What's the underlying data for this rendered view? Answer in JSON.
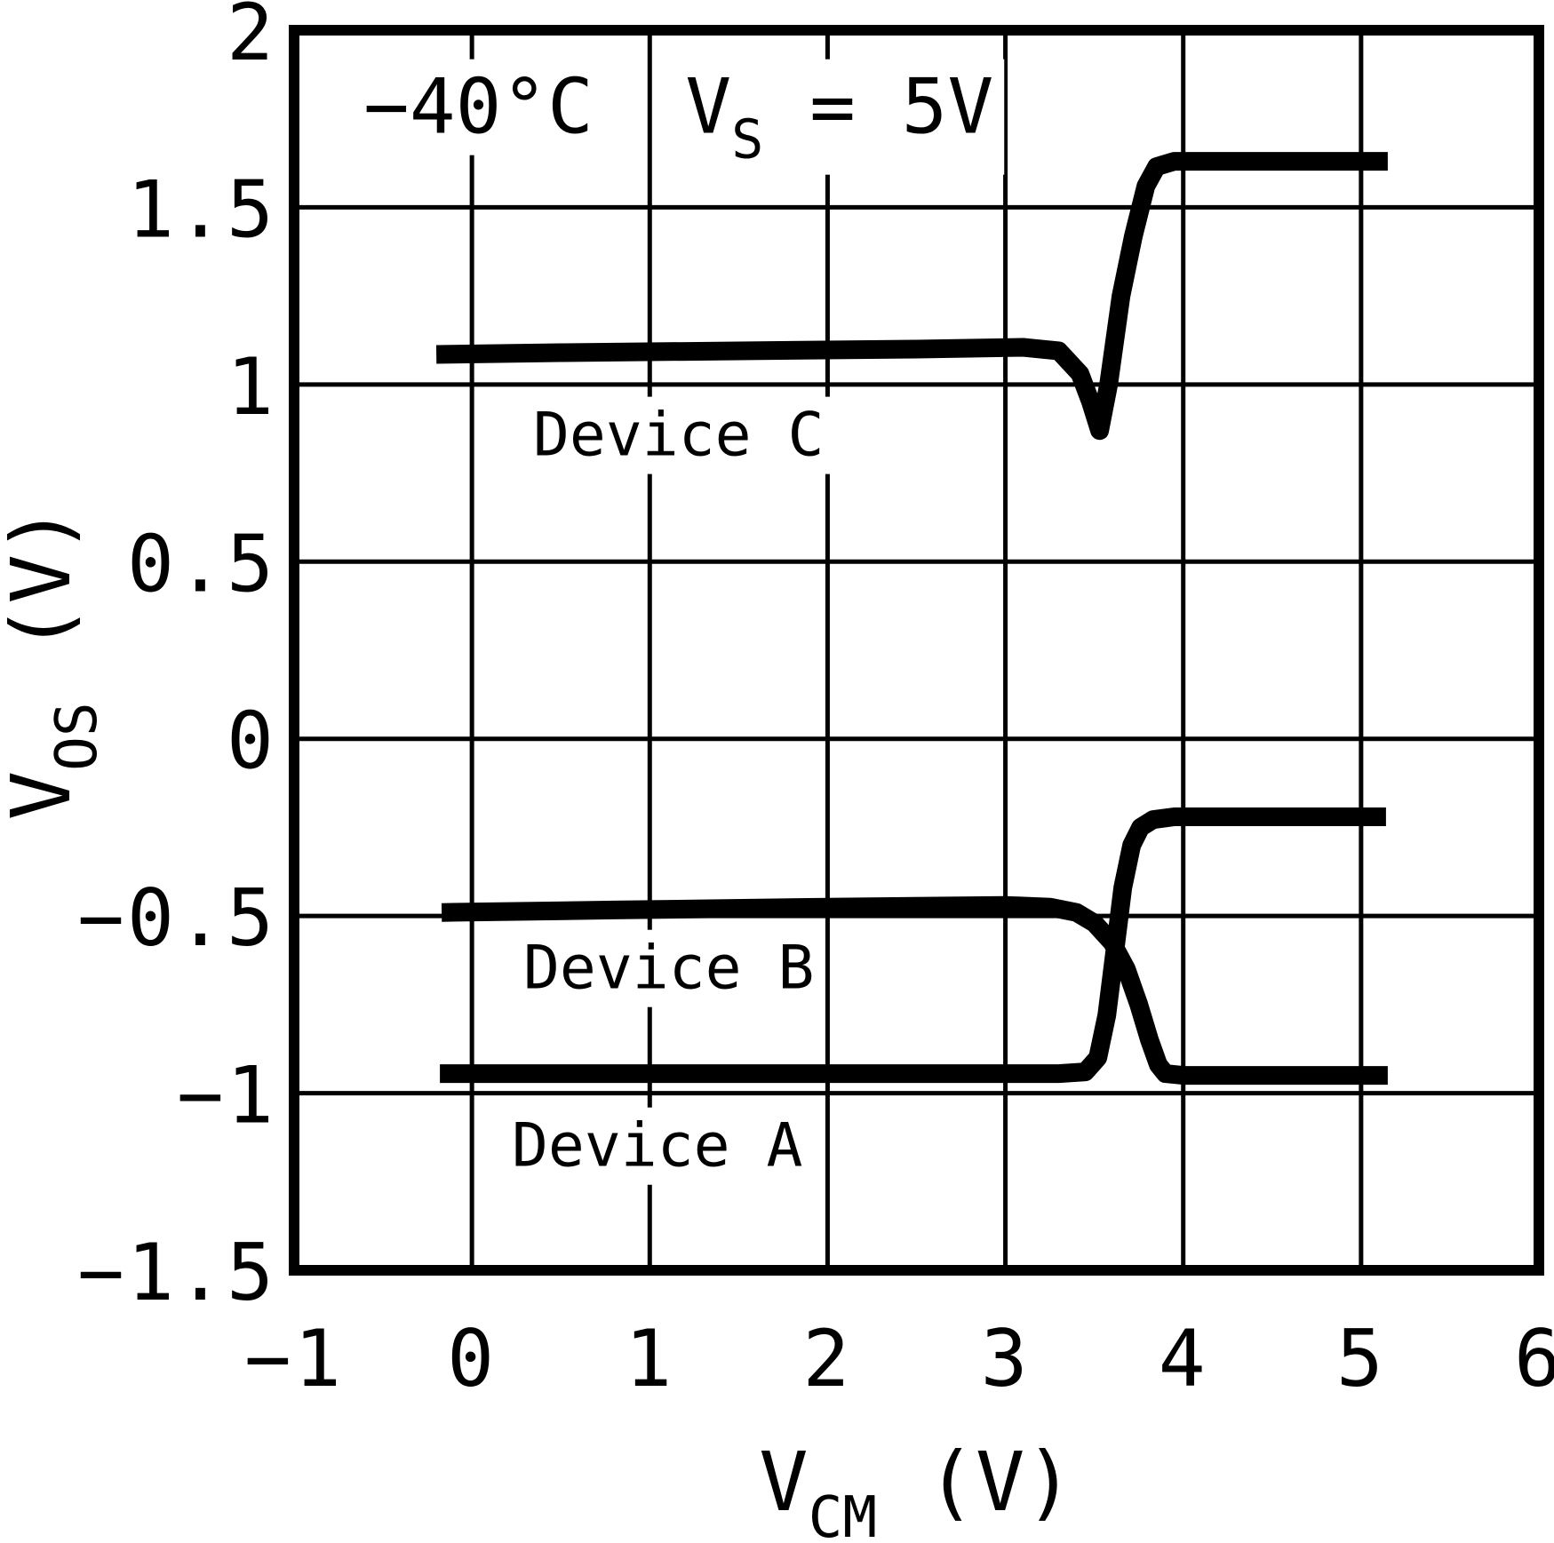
{
  "figure": {
    "background_color": "#ffffff",
    "ink_color": "#000000"
  },
  "chart_data": {
    "type": "line",
    "title": "",
    "xlabel": {
      "base": "V",
      "sub": "CM",
      "rest": " (V)"
    },
    "ylabel": {
      "base": "V",
      "sub": "OS",
      "rest": " (V)"
    },
    "xlim": [
      -1,
      6
    ],
    "ylim": [
      -1.5,
      2
    ],
    "grid": true,
    "legend_position": "none",
    "xticks": {
      "values": [
        -1,
        0,
        1,
        2,
        3,
        4,
        5,
        6
      ],
      "labels": [
        "−1",
        "0",
        "1",
        "2",
        "3",
        "4",
        "5",
        "6"
      ]
    },
    "yticks": {
      "values": [
        2,
        1.5,
        1,
        0.5,
        0,
        -0.5,
        -1,
        -1.5
      ],
      "labels": [
        "2",
        "1.5",
        "1",
        "0.5",
        "0",
        "−0.5",
        "−1",
        "−1.5"
      ]
    },
    "annotations": [
      {
        "id": "temperature",
        "text": "−40°C",
        "x": -0.61,
        "y": 1.71
      },
      {
        "id": "supply-voltage",
        "base": "V",
        "sub": "S",
        "rest": " = 5V",
        "x": 1.2,
        "y": 1.71
      }
    ],
    "series": [
      {
        "name": "Device C",
        "points": [
          [
            -0.2,
            1.085
          ],
          [
            0.5,
            1.09
          ],
          [
            1.5,
            1.095
          ],
          [
            2.5,
            1.1
          ],
          [
            3.1,
            1.105
          ],
          [
            3.3,
            1.095
          ],
          [
            3.42,
            1.03
          ],
          [
            3.48,
            0.95
          ],
          [
            3.53,
            0.87
          ],
          [
            3.58,
            1.0
          ],
          [
            3.65,
            1.25
          ],
          [
            3.72,
            1.42
          ],
          [
            3.79,
            1.56
          ],
          [
            3.85,
            1.615
          ],
          [
            3.95,
            1.63
          ],
          [
            4.5,
            1.63
          ],
          [
            5.15,
            1.63
          ]
        ]
      },
      {
        "name": "Device B",
        "points": [
          [
            -0.17,
            -0.49
          ],
          [
            0.8,
            -0.483
          ],
          [
            2.0,
            -0.475
          ],
          [
            3.0,
            -0.47
          ],
          [
            3.25,
            -0.475
          ],
          [
            3.4,
            -0.49
          ],
          [
            3.5,
            -0.52
          ],
          [
            3.6,
            -0.575
          ],
          [
            3.68,
            -0.65
          ],
          [
            3.75,
            -0.75
          ],
          [
            3.81,
            -0.85
          ],
          [
            3.86,
            -0.92
          ],
          [
            3.9,
            -0.945
          ],
          [
            4.0,
            -0.95
          ],
          [
            5.15,
            -0.95
          ]
        ]
      },
      {
        "name": "Device A",
        "points": [
          [
            -0.18,
            -0.945
          ],
          [
            1.0,
            -0.945
          ],
          [
            2.5,
            -0.945
          ],
          [
            3.3,
            -0.945
          ],
          [
            3.45,
            -0.94
          ],
          [
            3.52,
            -0.9
          ],
          [
            3.57,
            -0.78
          ],
          [
            3.62,
            -0.58
          ],
          [
            3.66,
            -0.42
          ],
          [
            3.71,
            -0.3
          ],
          [
            3.76,
            -0.25
          ],
          [
            3.83,
            -0.228
          ],
          [
            3.95,
            -0.22
          ],
          [
            4.5,
            -0.22
          ],
          [
            5.14,
            -0.22
          ]
        ]
      }
    ],
    "series_labels": [
      {
        "text": "Device C",
        "x": 0.344,
        "y": 0.8
      },
      {
        "text": "Device B",
        "x": 0.289,
        "y": -0.7045
      },
      {
        "text": "Device A",
        "x": 0.224,
        "y": -1.206
      }
    ]
  }
}
